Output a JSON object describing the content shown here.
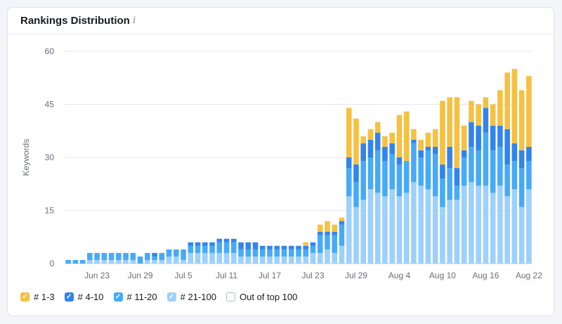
{
  "card": {
    "title": "Rankings Distribution",
    "info_icon": "info-icon"
  },
  "chart_data": {
    "type": "bar",
    "stacked": true,
    "ylabel": "Keywords",
    "ylim": [
      0,
      60
    ],
    "y_ticks": [
      "0",
      "15",
      "30",
      "45",
      "60"
    ],
    "grid": true,
    "x_ticks": [
      "Jun 23",
      "Jun 29",
      "Jul 5",
      "Jul 11",
      "Jul 17",
      "Jul 23",
      "Jul 29",
      "Aug 4",
      "Aug 10",
      "Aug 16",
      "Aug 22"
    ],
    "categories": [
      "Jun 19",
      "Jun 20",
      "Jun 21",
      "Jun 22",
      "Jun 23",
      "Jun 24",
      "Jun 25",
      "Jun 26",
      "Jun 27",
      "Jun 28",
      "Jun 29",
      "Jun 30",
      "Jul 1",
      "Jul 2",
      "Jul 3",
      "Jul 4",
      "Jul 5",
      "Jul 6",
      "Jul 7",
      "Jul 8",
      "Jul 9",
      "Jul 10",
      "Jul 11",
      "Jul 12",
      "Jul 13",
      "Jul 14",
      "Jul 15",
      "Jul 16",
      "Jul 17",
      "Jul 18",
      "Jul 19",
      "Jul 20",
      "Jul 21",
      "Jul 22",
      "Jul 23",
      "Jul 24",
      "Jul 25",
      "Jul 26",
      "Jul 27",
      "Jul 28",
      "Jul 29",
      "Jul 30",
      "Jul 31",
      "Aug 1",
      "Aug 2",
      "Aug 3",
      "Aug 4",
      "Aug 5",
      "Aug 6",
      "Aug 7",
      "Aug 8",
      "Aug 9",
      "Aug 10",
      "Aug 11",
      "Aug 12",
      "Aug 13",
      "Aug 14",
      "Aug 15",
      "Aug 16",
      "Aug 17",
      "Aug 18",
      "Aug 19",
      "Aug 20",
      "Aug 21",
      "Aug 22"
    ],
    "series": [
      {
        "name": "# 21-100",
        "color": "#9dd0fb",
        "values": [
          0,
          0,
          0,
          1,
          1,
          1,
          1,
          1,
          1,
          1,
          0,
          1,
          1,
          1,
          2,
          2,
          1,
          3,
          3,
          3,
          3,
          3,
          3,
          3,
          2,
          2,
          2,
          2,
          2,
          2,
          2,
          2,
          2,
          2,
          3,
          3,
          4,
          3,
          5,
          19,
          16,
          18,
          21,
          20,
          19,
          21,
          19,
          20,
          23,
          22,
          21,
          19,
          16,
          18,
          18,
          22,
          23,
          22,
          22,
          20,
          22,
          19,
          21,
          16,
          21
        ]
      },
      {
        "name": "# 11-20",
        "color": "#47aaf8",
        "values": [
          1,
          1,
          1,
          2,
          2,
          2,
          2,
          2,
          2,
          2,
          2,
          2,
          1,
          2,
          2,
          2,
          3,
          2,
          2,
          2,
          2,
          3,
          3,
          3,
          2,
          2,
          2,
          2,
          2,
          2,
          2,
          2,
          2,
          2,
          2,
          5,
          4,
          5,
          6,
          8,
          7,
          11,
          9,
          12,
          10,
          10,
          9,
          9,
          11,
          8,
          11,
          12,
          8,
          9,
          4,
          8,
          10,
          10,
          15,
          12,
          11,
          9,
          8,
          11,
          8
        ]
      },
      {
        "name": "# 4-10",
        "color": "#3284ec",
        "values": [
          0,
          0,
          0,
          0,
          0,
          0,
          0,
          0,
          0,
          0,
          0,
          0,
          1,
          0,
          0,
          0,
          0,
          1,
          1,
          1,
          1,
          1,
          1,
          1,
          2,
          2,
          2,
          1,
          1,
          1,
          1,
          1,
          1,
          1,
          1,
          1,
          1,
          1,
          1,
          3,
          5,
          5,
          5,
          5,
          4,
          3,
          2,
          0,
          1,
          2,
          1,
          2,
          4,
          6,
          5,
          2,
          7,
          7,
          7,
          7,
          6,
          10,
          5,
          5,
          4
        ]
      },
      {
        "name": "# 1-3",
        "color": "#f5c142",
        "values": [
          0,
          0,
          0,
          0,
          0,
          0,
          0,
          0,
          0,
          0,
          0,
          0,
          0,
          0,
          0,
          0,
          0,
          0,
          0,
          0,
          0,
          0,
          0,
          0,
          0,
          0,
          0,
          0,
          0,
          0,
          0,
          0,
          0,
          1,
          0,
          2,
          3,
          2,
          1,
          14,
          13,
          2,
          3,
          3,
          3,
          3,
          12,
          14,
          3,
          3,
          4,
          5,
          18,
          14,
          20,
          7,
          6,
          6,
          3,
          6,
          10,
          16,
          21,
          17,
          20
        ]
      }
    ]
  },
  "legend": [
    {
      "label": "# 1-3",
      "checked": true,
      "color": "#f5c142"
    },
    {
      "label": "# 4-10",
      "checked": true,
      "color": "#3284ec"
    },
    {
      "label": "# 11-20",
      "checked": true,
      "color": "#47aaf8"
    },
    {
      "label": "# 21-100",
      "checked": true,
      "color": "#9dd0fb"
    },
    {
      "label": "Out of top 100",
      "checked": false,
      "color": "#ffffff"
    }
  ]
}
